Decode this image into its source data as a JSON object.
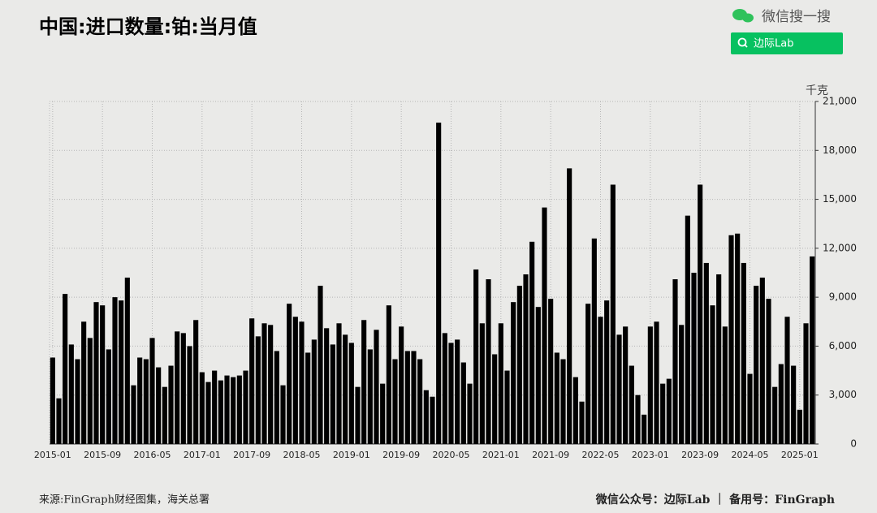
{
  "chart_data": {
    "type": "bar",
    "title": "中国:进口数量:铂:当月值",
    "y_label": "千克",
    "source": "来源:FinGraph财经图集，海关总署",
    "footer": "微信公众号：边际Lab ｜ 备用号：FinGraph",
    "watermark": "微信搜一搜",
    "search_label": "边际Lab",
    "color": "#000000",
    "grid": true,
    "categories": [
      "2015-01",
      null,
      null,
      null,
      null,
      null,
      null,
      null,
      "2015-09",
      null,
      null,
      null,
      null,
      null,
      null,
      null,
      "2016-05",
      null,
      null,
      null,
      null,
      null,
      null,
      null,
      "2017-01",
      null,
      null,
      null,
      null,
      null,
      null,
      null,
      "2017-09",
      null,
      null,
      null,
      null,
      null,
      null,
      null,
      "2018-05",
      null,
      null,
      null,
      null,
      null,
      null,
      null,
      "2019-01",
      null,
      null,
      null,
      null,
      null,
      null,
      null,
      "2019-09",
      null,
      null,
      null,
      null,
      null,
      null,
      null,
      "2020-05",
      null,
      null,
      null,
      null,
      null,
      null,
      null,
      "2021-01",
      null,
      null,
      null,
      null,
      null,
      null,
      null,
      "2021-09",
      null,
      null,
      null,
      null,
      null,
      null,
      null,
      "2022-05",
      null,
      null,
      null,
      null,
      null,
      null,
      null,
      "2023-01",
      null,
      null,
      null,
      null,
      null,
      null,
      null,
      "2023-09",
      null,
      null,
      null,
      null,
      null,
      null,
      null,
      "2024-05",
      null,
      null,
      null,
      null,
      null,
      null,
      null,
      "2025-01",
      null,
      null
    ],
    "values": [
      5300,
      2800,
      9200,
      6100,
      5200,
      7500,
      6500,
      8700,
      8500,
      5800,
      9000,
      8800,
      10200,
      3600,
      5300,
      5200,
      6500,
      4700,
      3500,
      4800,
      6900,
      6800,
      6000,
      7600,
      4400,
      3800,
      4500,
      3900,
      4200,
      4100,
      4200,
      4500,
      7700,
      6600,
      7400,
      7300,
      5700,
      3600,
      8600,
      7800,
      7500,
      5600,
      6400,
      9700,
      7100,
      6100,
      7400,
      6700,
      6200,
      3500,
      7600,
      5800,
      7000,
      3700,
      8500,
      5200,
      7200,
      5700,
      5700,
      5200,
      3300,
      2900,
      19700,
      6800,
      6200,
      6400,
      5000,
      3700,
      10700,
      7400,
      10100,
      5500,
      7400,
      4500,
      8700,
      9700,
      10400,
      12400,
      8400,
      14500,
      8900,
      5600,
      5200,
      16900,
      4100,
      2600,
      8600,
      12600,
      7800,
      8800,
      15900,
      6700,
      7200,
      4800,
      3000,
      1800,
      7200,
      7500,
      3700,
      4000,
      10100,
      7300,
      14000,
      10500,
      15900,
      11100,
      8500,
      10400,
      7200,
      12800,
      12900,
      11100,
      4300,
      9700,
      10200,
      8900,
      3500,
      4900,
      7800,
      4800,
      2100,
      7400,
      11500
    ],
    "ylim": [
      0,
      21000
    ],
    "yticks": [
      0,
      {
        "value": 3000,
        "label": "3,000"
      },
      {
        "value": 6000,
        "label": "6,000"
      },
      {
        "value": 9000,
        "label": "9,000"
      },
      {
        "value": 12000,
        "label": "12,000"
      },
      {
        "value": 15000,
        "label": "15,000"
      },
      {
        "value": 18000,
        "label": "18,000"
      },
      {
        "value": 21000,
        "label": "21,000"
      }
    ]
  }
}
